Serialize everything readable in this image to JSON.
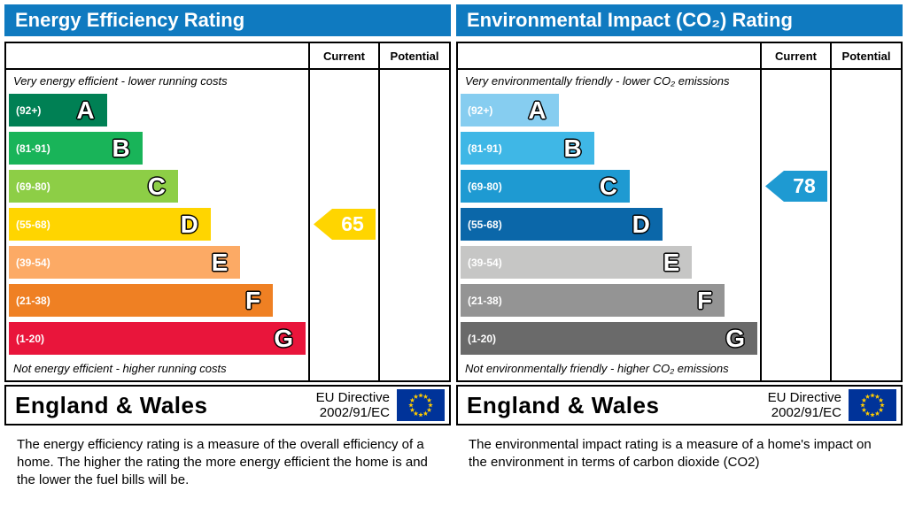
{
  "theme": {
    "page_background": "#ffffff",
    "header_bg": "#0f7ac0",
    "header_text": "#ffffff",
    "table_border": "#000000",
    "eu_flag_bg": "#003399",
    "eu_star_color": "#ffcc00"
  },
  "panels": [
    {
      "title": "Energy Efficiency Rating",
      "columns": {
        "current": "Current",
        "potential": "Potential"
      },
      "caption_top": "Very energy efficient - lower running costs",
      "caption_bottom": "Not energy efficient - higher running costs",
      "bands": [
        {
          "letter": "A",
          "range": "(92+)",
          "color": "#008054",
          "width_pct": 33
        },
        {
          "letter": "B",
          "range": "(81-91)",
          "color": "#19b459",
          "width_pct": 45
        },
        {
          "letter": "C",
          "range": "(69-80)",
          "color": "#8dce46",
          "width_pct": 57
        },
        {
          "letter": "D",
          "range": "(55-68)",
          "color": "#ffd500",
          "width_pct": 68
        },
        {
          "letter": "E",
          "range": "(39-54)",
          "color": "#fcaa65",
          "width_pct": 78
        },
        {
          "letter": "F",
          "range": "(21-38)",
          "color": "#ef8023",
          "width_pct": 89
        },
        {
          "letter": "G",
          "range": "(1-20)",
          "color": "#e9153b",
          "width_pct": 100
        }
      ],
      "current": {
        "value": "65",
        "band_index": 3,
        "color": "#ffd500"
      },
      "footer": {
        "region": "England & Wales",
        "directive_line1": "EU Directive",
        "directive_line2": "2002/91/EC"
      },
      "description": "The energy efficiency rating is a measure of the overall efficiency of a home.  The higher the rating the more energy efficient the home is and the lower the fuel bills will be."
    },
    {
      "title": "Environmental Impact (CO₂) Rating",
      "columns": {
        "current": "Current",
        "potential": "Potential"
      },
      "caption_top": "Very environmentally friendly - lower CO₂ emissions",
      "caption_bottom": "Not environmentally friendly - higher CO₂ emissions",
      "bands": [
        {
          "letter": "A",
          "range": "(92+)",
          "color": "#86cdf0",
          "width_pct": 33
        },
        {
          "letter": "B",
          "range": "(81-91)",
          "color": "#3fb7e6",
          "width_pct": 45
        },
        {
          "letter": "C",
          "range": "(69-80)",
          "color": "#1e9ad2",
          "width_pct": 57
        },
        {
          "letter": "D",
          "range": "(55-68)",
          "color": "#0b67a9",
          "width_pct": 68
        },
        {
          "letter": "E",
          "range": "(39-54)",
          "color": "#c6c6c5",
          "width_pct": 78
        },
        {
          "letter": "F",
          "range": "(21-38)",
          "color": "#949494",
          "width_pct": 89
        },
        {
          "letter": "G",
          "range": "(1-20)",
          "color": "#6a6a6a",
          "width_pct": 100
        }
      ],
      "current": {
        "value": "78",
        "band_index": 2,
        "color": "#1e9ad2"
      },
      "footer": {
        "region": "England & Wales",
        "directive_line1": "EU Directive",
        "directive_line2": "2002/91/EC"
      },
      "description": "The environmental impact rating is a measure of a home's impact on the environment in terms of carbon dioxide (CO2)"
    }
  ],
  "chart_data": [
    {
      "type": "bar",
      "orientation": "horizontal",
      "title": "Energy Efficiency Rating",
      "categories": [
        "A",
        "B",
        "C",
        "D",
        "E",
        "F",
        "G"
      ],
      "band_ranges": [
        "92+",
        "81-91",
        "69-80",
        "55-68",
        "39-54",
        "21-38",
        "1-20"
      ],
      "bar_lengths_pct": [
        33,
        45,
        57,
        68,
        78,
        89,
        100
      ],
      "band_colors": [
        "#008054",
        "#19b459",
        "#8dce46",
        "#ffd500",
        "#fcaa65",
        "#ef8023",
        "#e9153b"
      ],
      "columns": [
        "Current",
        "Potential"
      ],
      "current_value": 65,
      "current_band": "D",
      "potential_value": "",
      "value_scale": [
        1,
        100
      ],
      "legend": "none"
    },
    {
      "type": "bar",
      "orientation": "horizontal",
      "title": "Environmental Impact (CO₂) Rating",
      "categories": [
        "A",
        "B",
        "C",
        "D",
        "E",
        "F",
        "G"
      ],
      "band_ranges": [
        "92+",
        "81-91",
        "69-80",
        "55-68",
        "39-54",
        "21-38",
        "1-20"
      ],
      "bar_lengths_pct": [
        33,
        45,
        57,
        68,
        78,
        89,
        100
      ],
      "band_colors": [
        "#86cdf0",
        "#3fb7e6",
        "#1e9ad2",
        "#0b67a9",
        "#c6c6c5",
        "#949494",
        "#6a6a6a"
      ],
      "columns": [
        "Current",
        "Potential"
      ],
      "current_value": 78,
      "current_band": "C",
      "potential_value": "",
      "value_scale": [
        1,
        100
      ],
      "legend": "none"
    }
  ]
}
